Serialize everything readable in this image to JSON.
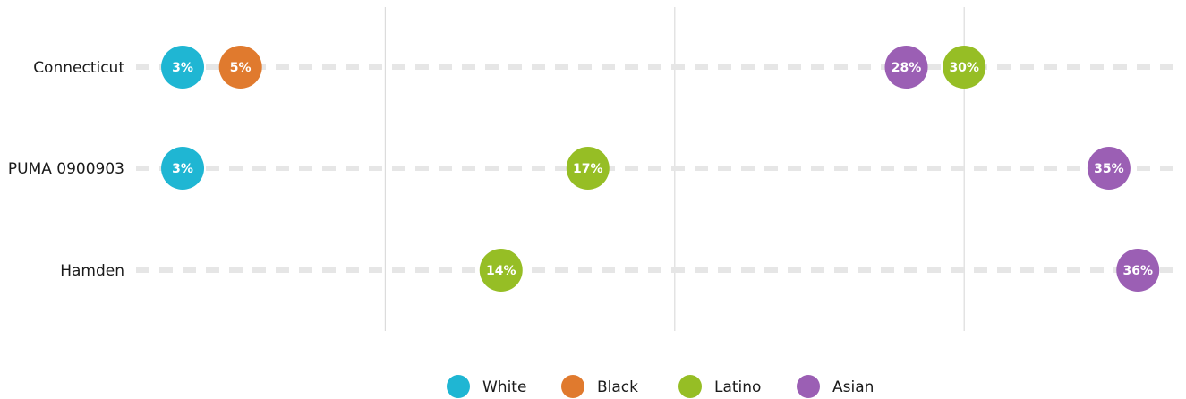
{
  "chart_data": {
    "type": "scatter",
    "categories": [
      "Connecticut",
      "PUMA 0900903",
      "Hamden"
    ],
    "series": [
      {
        "name": "White",
        "color": "#1FB6D3",
        "values": [
          3,
          3,
          null
        ]
      },
      {
        "name": "Black",
        "color": "#E07A2E",
        "values": [
          5,
          null,
          null
        ]
      },
      {
        "name": "Latino",
        "color": "#96BE25",
        "values": [
          30,
          17,
          14
        ]
      },
      {
        "name": "Asian",
        "color": "#9B5FB4",
        "values": [
          28,
          35,
          36
        ]
      }
    ],
    "value_format": "{v}%",
    "xlim": [
      0,
      37
    ],
    "gridlines_at": [
      10,
      20,
      30
    ],
    "xlabel": "",
    "ylabel": "",
    "title": "",
    "legend_position": "bottom-center",
    "grid": true
  }
}
